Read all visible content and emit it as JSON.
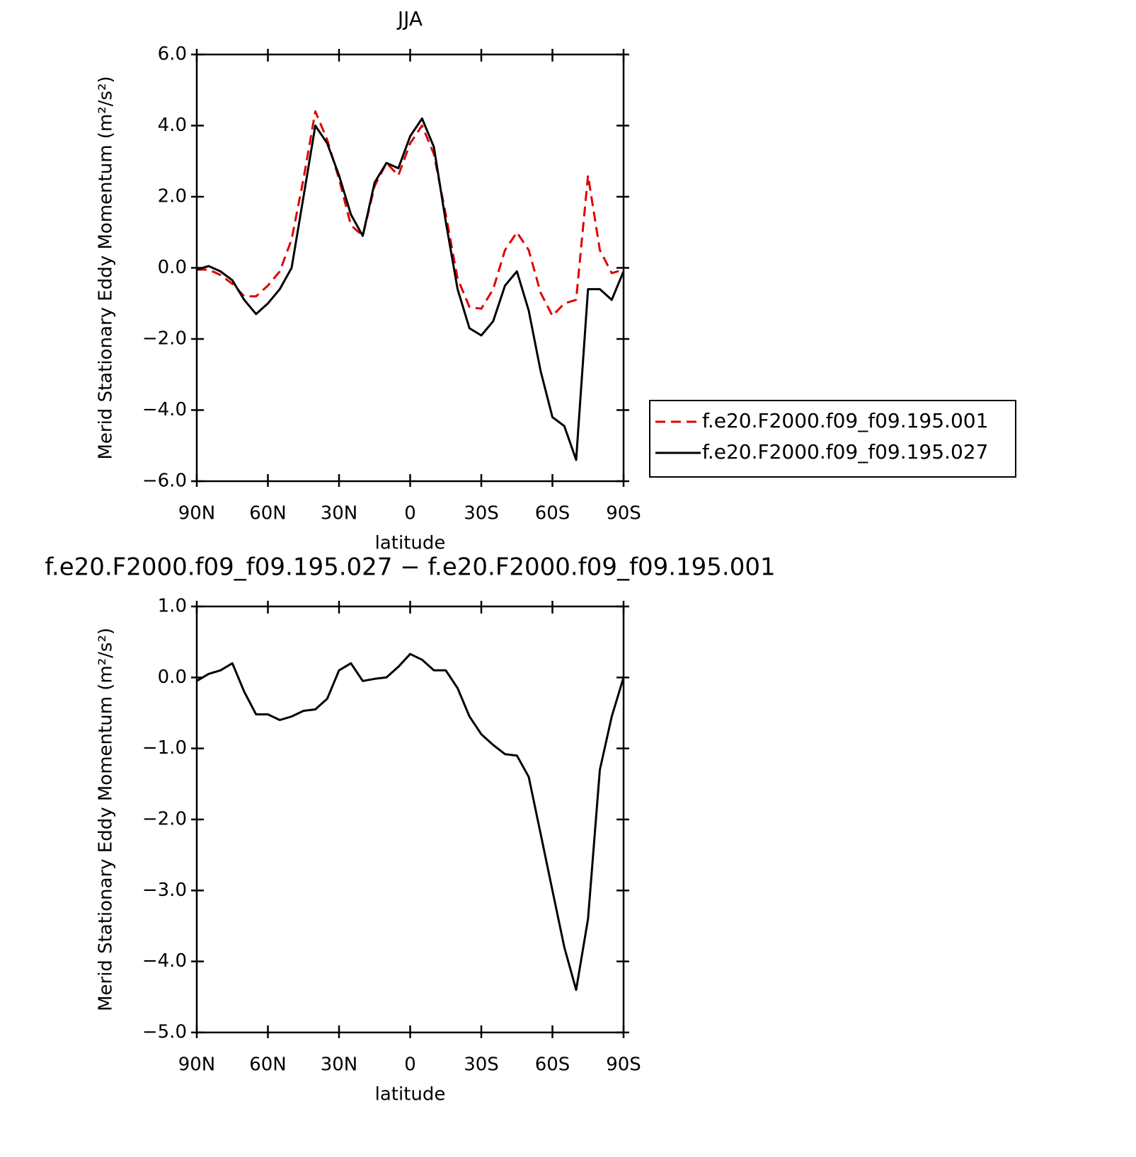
{
  "chart_data": [
    {
      "type": "line",
      "title": "JJA",
      "xlabel": "latitude",
      "ylabel": "Merid Stationary Eddy Momentum (m²/s²)",
      "x": [
        90,
        85,
        80,
        75,
        70,
        65,
        60,
        55,
        50,
        45,
        40,
        35,
        30,
        25,
        20,
        15,
        10,
        5,
        0,
        -5,
        -10,
        -15,
        -20,
        -25,
        -30,
        -35,
        -40,
        -45,
        -50,
        -55,
        -60,
        -65,
        -70,
        -75,
        -80,
        -85,
        -90
      ],
      "xlim": [
        90,
        -90
      ],
      "xticks": [
        {
          "value": 90,
          "label": "90N"
        },
        {
          "value": 60,
          "label": "60N"
        },
        {
          "value": 30,
          "label": "30N"
        },
        0,
        {
          "value": -30,
          "label": "30S"
        },
        {
          "value": -60,
          "label": "60S"
        },
        {
          "value": -90,
          "label": "90S"
        }
      ],
      "ylim": [
        -6,
        6
      ],
      "yticks": [
        {
          "value": -6,
          "label": "−6.0"
        },
        {
          "value": -4,
          "label": "−4.0"
        },
        {
          "value": -2,
          "label": "−2.0"
        },
        {
          "value": 0,
          "label": "0.0"
        },
        {
          "value": 2,
          "label": "2.0"
        },
        {
          "value": 4,
          "label": "4.0"
        },
        {
          "value": 6,
          "label": "6.0"
        }
      ],
      "legend": "right",
      "series": [
        {
          "name": "f.e20.F2000.f09_f09.195.001",
          "color": "#e00000",
          "line_style": "dashed",
          "values": [
            -0.05,
            -0.05,
            -0.2,
            -0.45,
            -0.8,
            -0.8,
            -0.5,
            -0.1,
            0.8,
            2.5,
            4.4,
            3.6,
            2.5,
            1.2,
            0.9,
            2.3,
            2.95,
            2.6,
            3.5,
            4.0,
            3.2,
            1.5,
            -0.3,
            -1.1,
            -1.15,
            -0.6,
            0.5,
            1.0,
            0.5,
            -0.7,
            -1.35,
            -1.0,
            -0.9,
            2.6,
            0.5,
            -0.15,
            -0.05
          ]
        },
        {
          "name": "f.e20.F2000.f09_f09.195.027",
          "color": "#000000",
          "line_style": "solid",
          "values": [
            -0.05,
            0.05,
            -0.1,
            -0.35,
            -0.9,
            -1.3,
            -1.0,
            -0.6,
            0.0,
            2.0,
            4.0,
            3.5,
            2.6,
            1.5,
            0.9,
            2.4,
            2.95,
            2.8,
            3.7,
            4.2,
            3.4,
            1.3,
            -0.6,
            -1.7,
            -1.9,
            -1.5,
            -0.5,
            -0.1,
            -1.2,
            -2.9,
            -4.2,
            -4.45,
            -5.4,
            -0.6,
            -0.6,
            -0.9,
            -0.1
          ]
        }
      ]
    },
    {
      "type": "line",
      "title": "f.e20.F2000.f09_f09.195.027 − f.e20.F2000.f09_f09.195.001",
      "xlabel": "latitude",
      "ylabel": "Merid Stationary Eddy Momentum (m²/s²)",
      "x": [
        90,
        85,
        80,
        75,
        70,
        65,
        60,
        55,
        50,
        45,
        40,
        35,
        30,
        25,
        20,
        15,
        10,
        5,
        0,
        -5,
        -10,
        -15,
        -20,
        -25,
        -30,
        -35,
        -40,
        -45,
        -50,
        -55,
        -60,
        -65,
        -70,
        -75,
        -80,
        -85,
        -90
      ],
      "xlim": [
        90,
        -90
      ],
      "xticks": [
        {
          "value": 90,
          "label": "90N"
        },
        {
          "value": 60,
          "label": "60N"
        },
        {
          "value": 30,
          "label": "30N"
        },
        0,
        {
          "value": -30,
          "label": "30S"
        },
        {
          "value": -60,
          "label": "60S"
        },
        {
          "value": -90,
          "label": "90S"
        }
      ],
      "ylim": [
        -5,
        1
      ],
      "yticks": [
        {
          "value": -5,
          "label": "−5.0"
        },
        {
          "value": -4,
          "label": "−4.0"
        },
        {
          "value": -3,
          "label": "−3.0"
        },
        {
          "value": -2,
          "label": "−2.0"
        },
        {
          "value": -1,
          "label": "−1.0"
        },
        {
          "value": 0,
          "label": "0.0"
        },
        {
          "value": 1,
          "label": "1.0"
        }
      ],
      "series": [
        {
          "color": "#000000",
          "line_style": "solid",
          "values": [
            -0.05,
            0.05,
            0.1,
            0.2,
            -0.2,
            -0.52,
            -0.52,
            -0.6,
            -0.55,
            -0.47,
            -0.45,
            -0.3,
            0.1,
            0.2,
            -0.05,
            -0.02,
            0.0,
            0.15,
            0.33,
            0.25,
            0.1,
            0.1,
            -0.15,
            -0.55,
            -0.8,
            -0.95,
            -1.08,
            -1.1,
            -1.4,
            -2.2,
            -3.0,
            -3.8,
            -4.4,
            -3.4,
            -1.3,
            -0.55,
            0.0
          ]
        }
      ]
    }
  ]
}
